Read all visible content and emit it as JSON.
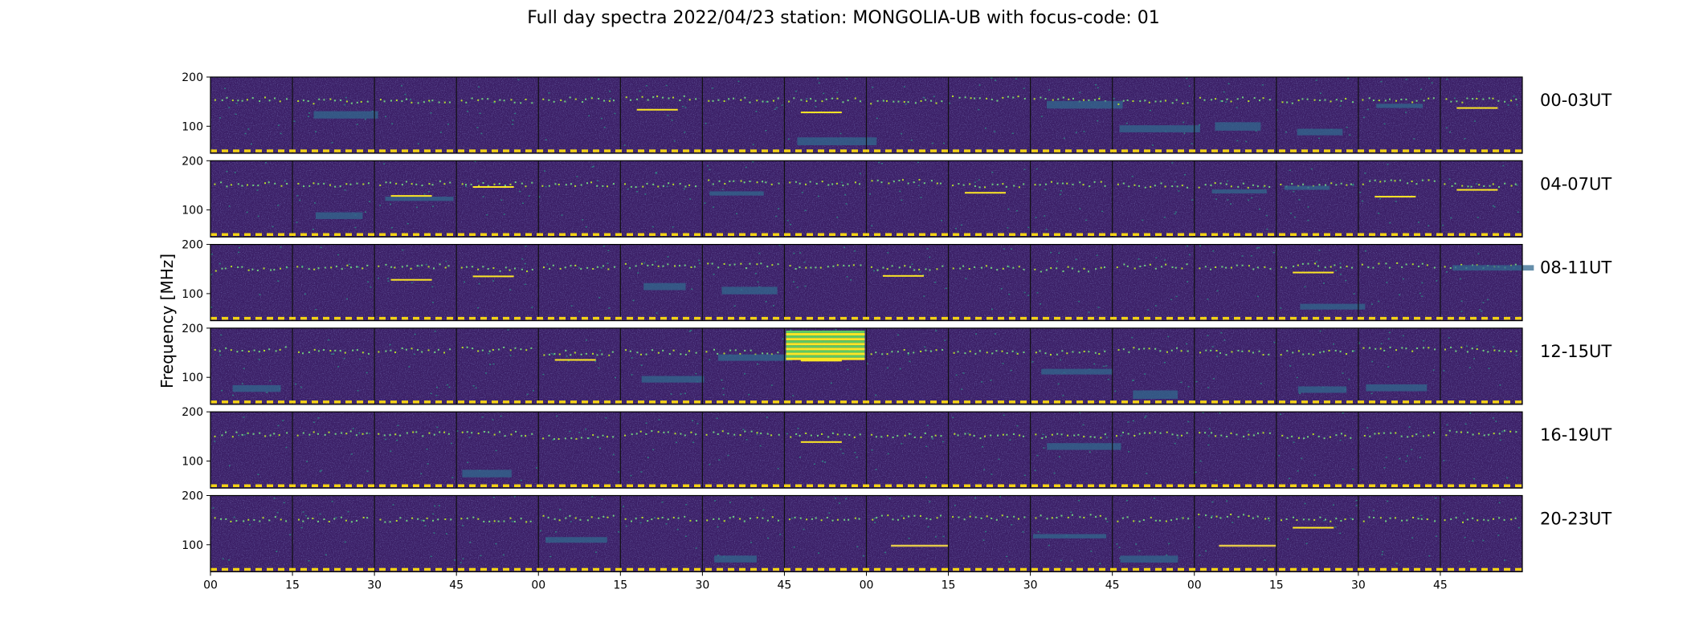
{
  "chart_data": {
    "type": "heatmap",
    "title": "Full day spectra 2022/04/23 station: MONGOLIA-UB with focus-code: 01",
    "ylabel": "Frequency [MHz]",
    "xlabel": "",
    "x_tick_labels": [
      "00",
      "15",
      "30",
      "45",
      "00",
      "15",
      "30",
      "45",
      "00",
      "15",
      "30",
      "45",
      "00",
      "15",
      "30",
      "45"
    ],
    "y_tick_labels": [
      "200",
      "100"
    ],
    "ylim": [
      45,
      200
    ],
    "colormap": "viridis",
    "colors": {
      "background": "#3b1f66",
      "low": "#440154",
      "mid": "#31688e",
      "high": "#fde725",
      "marker": "#f3d214"
    },
    "segments_per_row": 16,
    "segment_minutes": 15,
    "rows": [
      {
        "label": "00-03UT",
        "bright_segments": [
          5,
          7,
          15
        ],
        "band_segments": [
          1,
          7,
          10,
          11,
          12,
          13,
          14
        ]
      },
      {
        "label": "04-07UT",
        "bright_segments": [
          2,
          3,
          9,
          14,
          15
        ],
        "band_segments": [
          1,
          2,
          6,
          12,
          13
        ]
      },
      {
        "label": "08-11UT",
        "bright_segments": [
          2,
          3,
          8,
          13
        ],
        "band_segments": [
          5,
          6,
          13,
          15
        ]
      },
      {
        "label": "12-15UT",
        "bright_segments": [
          4,
          7
        ],
        "band_segments": [
          0,
          5,
          6,
          10,
          11,
          13,
          14
        ],
        "burst_segments": [
          7
        ]
      },
      {
        "label": "16-19UT",
        "bright_segments": [
          7
        ],
        "band_segments": [
          3,
          10
        ]
      },
      {
        "label": "20-23UT",
        "bright_segments": [
          13
        ],
        "band_segments": [
          4,
          6,
          10,
          11
        ],
        "line_segments": [
          8,
          12
        ]
      }
    ]
  }
}
